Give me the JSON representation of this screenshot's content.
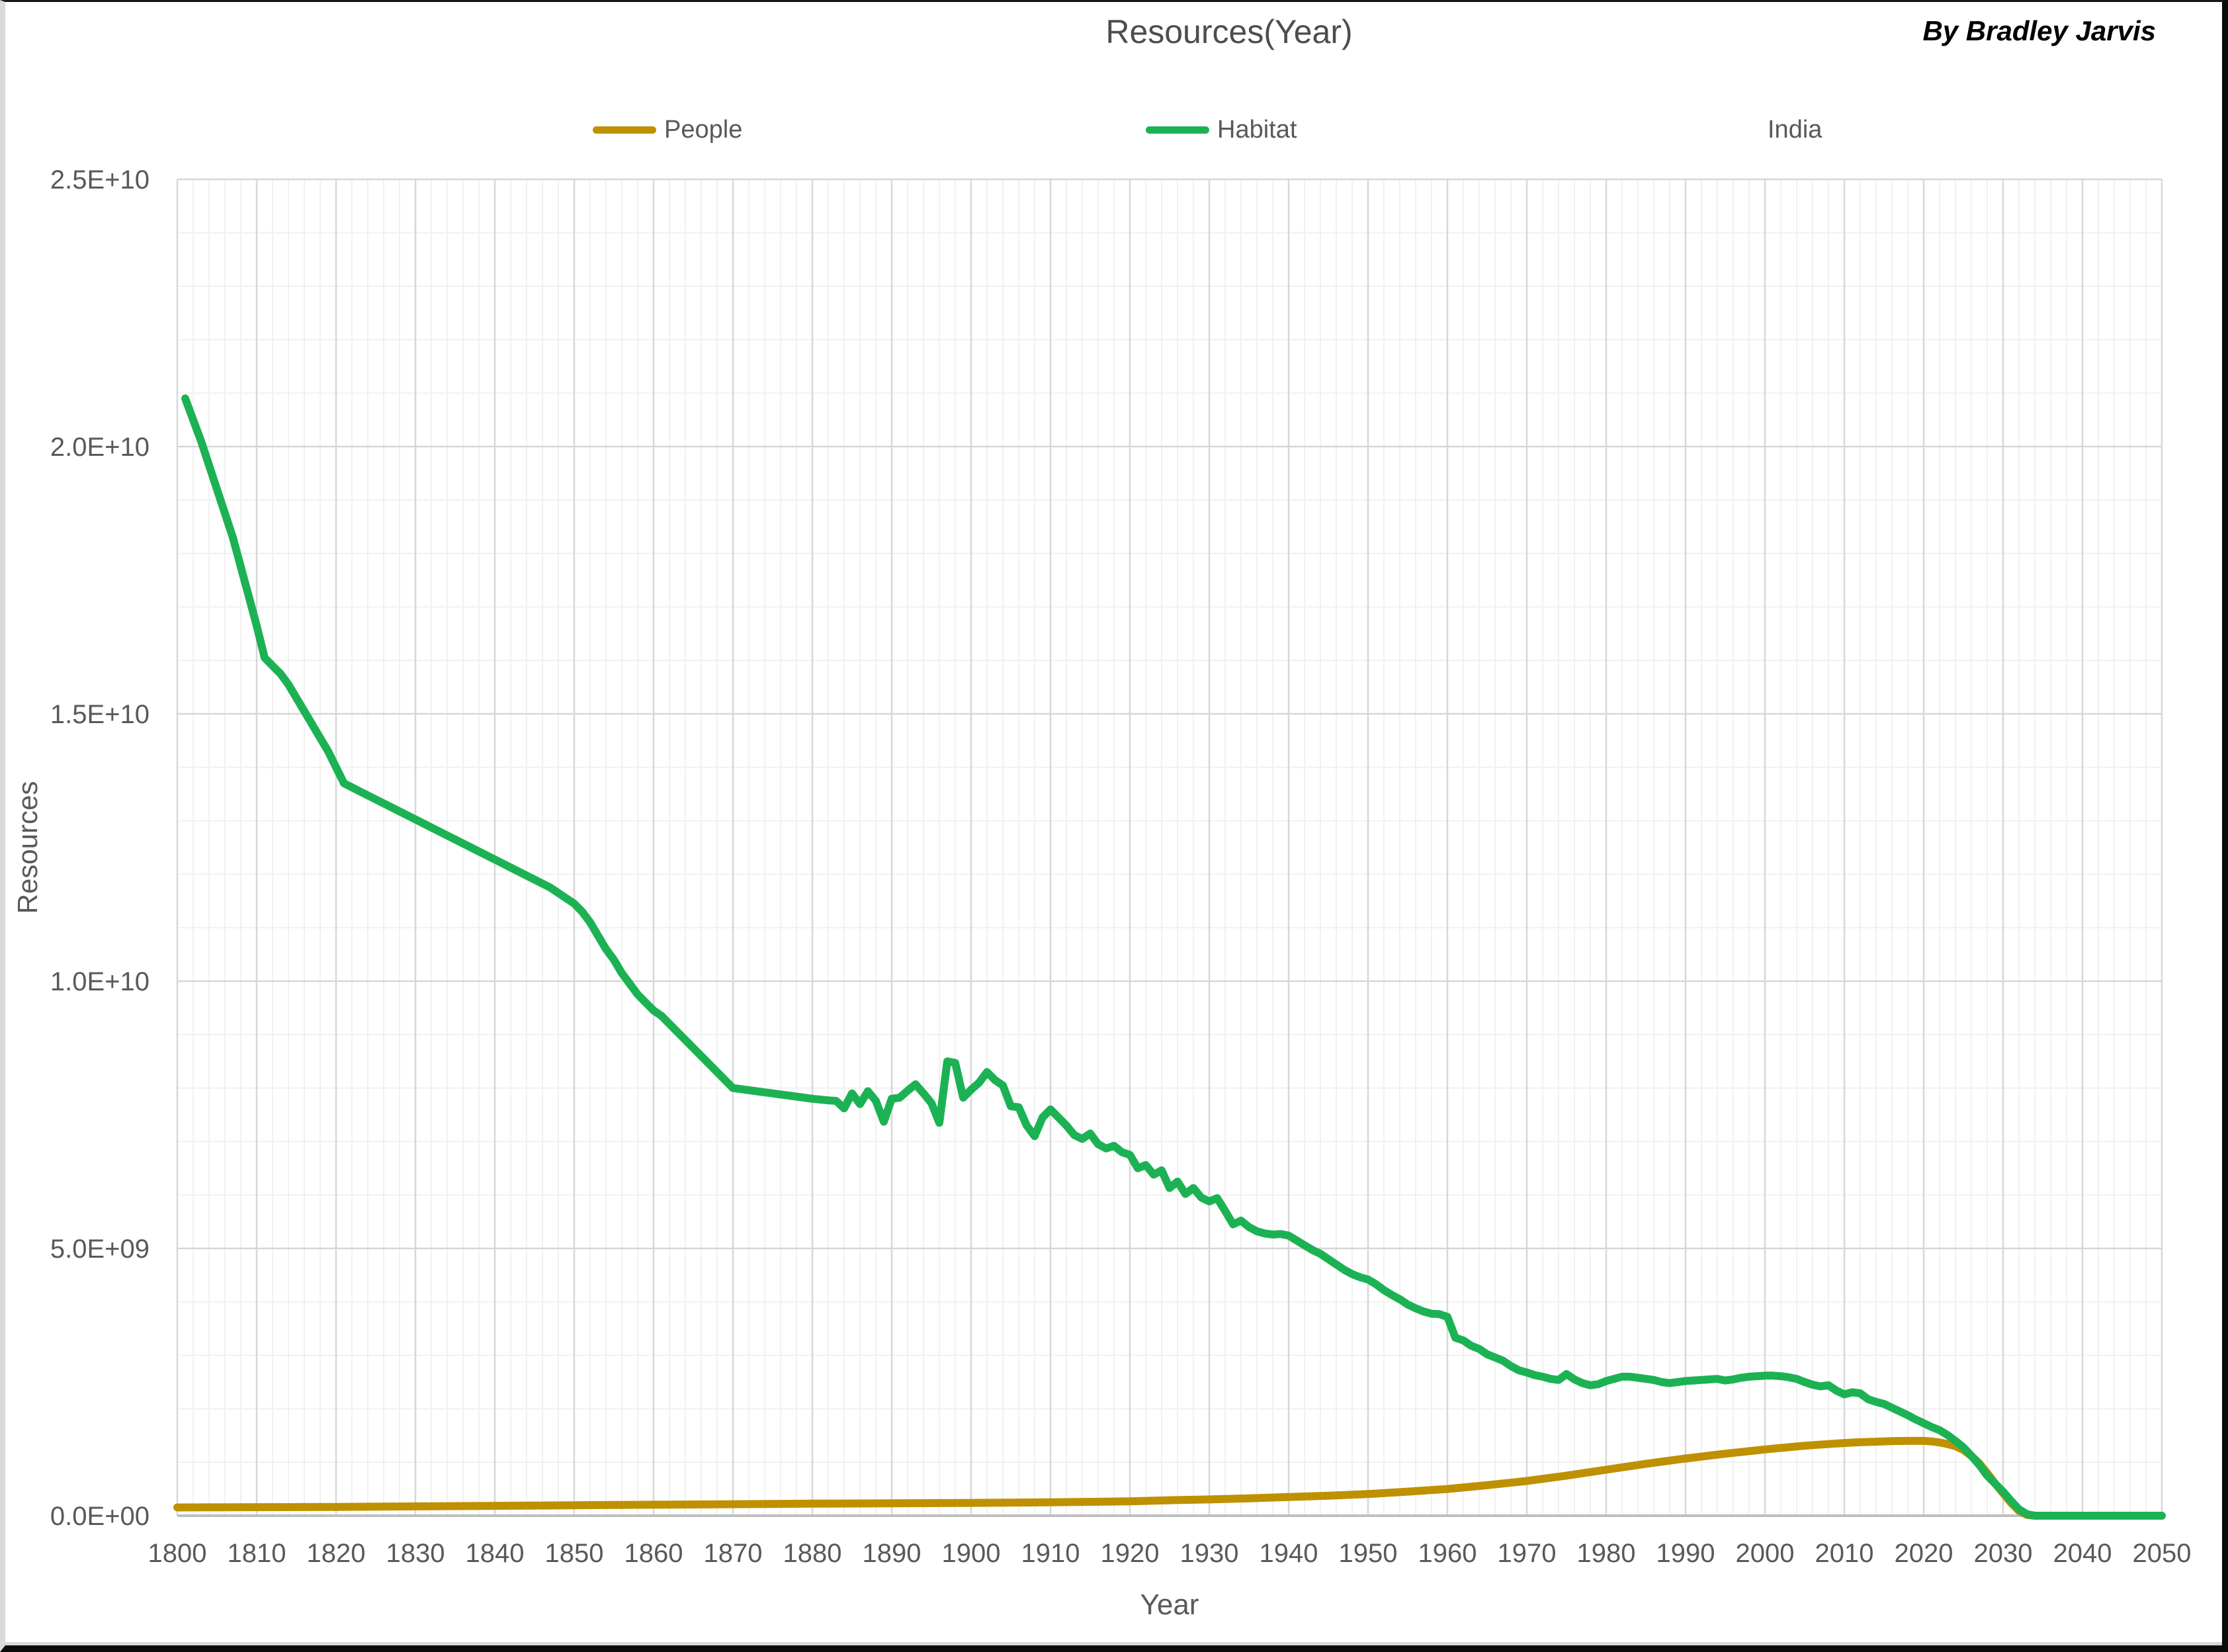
{
  "page": {
    "byline": "By Bradley Jarvis"
  },
  "chart_data": {
    "type": "line",
    "title": "Resources(Year)",
    "xlabel": "Year",
    "ylabel": "Resources",
    "x_range": [
      1800,
      2050
    ],
    "y_range_e9": [
      0,
      25
    ],
    "grid": {
      "x_minor_step_years": 2,
      "x_major_step_years": 10,
      "y_minor_step_e9": 1,
      "y_major_step_e9": 5,
      "grid_on": true
    },
    "legend_position": "top",
    "colors": {
      "people": "#BF9000",
      "habitat": "#1CB254",
      "major_grid": "#D7D7D7",
      "minor_grid": "#F1F1F1",
      "axis": "#BFBFBF",
      "text": "#595959"
    },
    "x_tick_labels": [
      1800,
      1810,
      1820,
      1830,
      1840,
      1850,
      1860,
      1870,
      1880,
      1890,
      1900,
      1910,
      1920,
      1930,
      1940,
      1950,
      1960,
      1970,
      1980,
      1990,
      2000,
      2010,
      2020,
      2030,
      2040,
      2050
    ],
    "y_ticks": [
      {
        "label": "0.0E+00",
        "value_e9": 0
      },
      {
        "label": "5.0E+09",
        "value_e9": 5
      },
      {
        "label": "1.0E+10",
        "value_e9": 10
      },
      {
        "label": "1.5E+10",
        "value_e9": 15
      },
      {
        "label": "2.0E+10",
        "value_e9": 20
      },
      {
        "label": "2.5E+10",
        "value_e9": 25
      }
    ],
    "legend": [
      {
        "label": "People",
        "color": "#BF9000",
        "has_swatch": true
      },
      {
        "label": "Habitat",
        "color": "#1CB254",
        "has_swatch": true
      },
      {
        "label": "India",
        "color": null,
        "has_swatch": false
      }
    ],
    "series": [
      {
        "name": "People",
        "color": "#BF9000",
        "unit": 1000000000.0,
        "points": [
          [
            1800,
            0.155
          ],
          [
            1810,
            0.16
          ],
          [
            1820,
            0.165
          ],
          [
            1830,
            0.175
          ],
          [
            1840,
            0.185
          ],
          [
            1850,
            0.195
          ],
          [
            1860,
            0.205
          ],
          [
            1870,
            0.215
          ],
          [
            1880,
            0.225
          ],
          [
            1890,
            0.232
          ],
          [
            1900,
            0.24
          ],
          [
            1910,
            0.25
          ],
          [
            1915,
            0.26
          ],
          [
            1920,
            0.27
          ],
          [
            1925,
            0.29
          ],
          [
            1930,
            0.305
          ],
          [
            1935,
            0.325
          ],
          [
            1940,
            0.35
          ],
          [
            1945,
            0.375
          ],
          [
            1950,
            0.405
          ],
          [
            1955,
            0.45
          ],
          [
            1960,
            0.5
          ],
          [
            1965,
            0.57
          ],
          [
            1970,
            0.65
          ],
          [
            1975,
            0.75
          ],
          [
            1980,
            0.86
          ],
          [
            1985,
            0.97
          ],
          [
            1990,
            1.07
          ],
          [
            1995,
            1.16
          ],
          [
            2000,
            1.24
          ],
          [
            2005,
            1.31
          ],
          [
            2008,
            1.34
          ],
          [
            2010,
            1.36
          ],
          [
            2012,
            1.375
          ],
          [
            2014,
            1.385
          ],
          [
            2016,
            1.395
          ],
          [
            2018,
            1.4
          ],
          [
            2020,
            1.4
          ],
          [
            2021,
            1.39
          ],
          [
            2022,
            1.37
          ],
          [
            2023,
            1.34
          ],
          [
            2024,
            1.3
          ],
          [
            2025,
            1.23
          ],
          [
            2026,
            1.12
          ],
          [
            2027,
            0.98
          ],
          [
            2028,
            0.8
          ],
          [
            2029,
            0.6
          ],
          [
            2030,
            0.42
          ],
          [
            2031,
            0.24
          ],
          [
            2032,
            0.09
          ],
          [
            2033,
            0.015
          ],
          [
            2034,
            0
          ],
          [
            2040,
            0
          ],
          [
            2045,
            0
          ],
          [
            2050,
            0
          ]
        ]
      },
      {
        "name": "Habitat",
        "color": "#1CB254",
        "unit": 1000000000.0,
        "points": [
          [
            1801,
            20.9
          ],
          [
            1802,
            20.5
          ],
          [
            1803,
            20.1
          ],
          [
            1804,
            19.65
          ],
          [
            1805,
            19.2
          ],
          [
            1806,
            18.75
          ],
          [
            1807,
            18.3
          ],
          [
            1808,
            17.75
          ],
          [
            1809,
            17.2
          ],
          [
            1810,
            16.65
          ],
          [
            1811,
            16.05
          ],
          [
            1812,
            15.9
          ],
          [
            1813,
            15.75
          ],
          [
            1814,
            15.55
          ],
          [
            1815,
            15.3
          ],
          [
            1816,
            15.05
          ],
          [
            1817,
            14.8
          ],
          [
            1818,
            14.55
          ],
          [
            1819,
            14.3
          ],
          [
            1820,
            14.0
          ],
          [
            1821,
            13.7
          ],
          [
            1823,
            13.55
          ],
          [
            1825,
            13.4
          ],
          [
            1827,
            13.25
          ],
          [
            1829,
            13.1
          ],
          [
            1831,
            12.95
          ],
          [
            1833,
            12.8
          ],
          [
            1835,
            12.65
          ],
          [
            1837,
            12.5
          ],
          [
            1839,
            12.35
          ],
          [
            1841,
            12.2
          ],
          [
            1843,
            12.05
          ],
          [
            1845,
            11.9
          ],
          [
            1847,
            11.75
          ],
          [
            1849,
            11.55
          ],
          [
            1850,
            11.45
          ],
          [
            1851,
            11.3
          ],
          [
            1852,
            11.1
          ],
          [
            1853,
            10.85
          ],
          [
            1854,
            10.6
          ],
          [
            1855,
            10.4
          ],
          [
            1856,
            10.15
          ],
          [
            1857,
            9.95
          ],
          [
            1858,
            9.75
          ],
          [
            1859,
            9.6
          ],
          [
            1860,
            9.45
          ],
          [
            1861,
            9.35
          ],
          [
            1862,
            9.2
          ],
          [
            1863,
            9.05
          ],
          [
            1864,
            8.9
          ],
          [
            1865,
            8.75
          ],
          [
            1866,
            8.6
          ],
          [
            1867,
            8.45
          ],
          [
            1868,
            8.3
          ],
          [
            1869,
            8.15
          ],
          [
            1870,
            8.0
          ],
          [
            1872,
            7.96
          ],
          [
            1874,
            7.92
          ],
          [
            1876,
            7.88
          ],
          [
            1878,
            7.84
          ],
          [
            1880,
            7.8
          ],
          [
            1882,
            7.77
          ],
          [
            1883,
            7.76
          ],
          [
            1884,
            7.62
          ],
          [
            1885,
            7.9
          ],
          [
            1886,
            7.7
          ],
          [
            1887,
            7.94
          ],
          [
            1888,
            7.76
          ],
          [
            1889,
            7.37
          ],
          [
            1890,
            7.8
          ],
          [
            1891,
            7.82
          ],
          [
            1892,
            7.95
          ],
          [
            1893,
            8.07
          ],
          [
            1894,
            7.9
          ],
          [
            1895,
            7.72
          ],
          [
            1896,
            7.35
          ],
          [
            1897,
            8.5
          ],
          [
            1898,
            8.47
          ],
          [
            1899,
            7.82
          ],
          [
            1900,
            7.97
          ],
          [
            1901,
            8.1
          ],
          [
            1902,
            8.3
          ],
          [
            1903,
            8.15
          ],
          [
            1904,
            8.05
          ],
          [
            1905,
            7.66
          ],
          [
            1906,
            7.64
          ],
          [
            1907,
            7.3
          ],
          [
            1908,
            7.1
          ],
          [
            1909,
            7.45
          ],
          [
            1910,
            7.6
          ],
          [
            1911,
            7.45
          ],
          [
            1912,
            7.3
          ],
          [
            1913,
            7.12
          ],
          [
            1914,
            7.05
          ],
          [
            1915,
            7.15
          ],
          [
            1916,
            6.95
          ],
          [
            1917,
            6.87
          ],
          [
            1918,
            6.92
          ],
          [
            1919,
            6.8
          ],
          [
            1920,
            6.75
          ],
          [
            1921,
            6.5
          ],
          [
            1922,
            6.56
          ],
          [
            1923,
            6.38
          ],
          [
            1924,
            6.46
          ],
          [
            1925,
            6.13
          ],
          [
            1926,
            6.25
          ],
          [
            1927,
            6.02
          ],
          [
            1928,
            6.13
          ],
          [
            1929,
            5.95
          ],
          [
            1930,
            5.88
          ],
          [
            1931,
            5.94
          ],
          [
            1932,
            5.7
          ],
          [
            1933,
            5.45
          ],
          [
            1934,
            5.52
          ],
          [
            1935,
            5.4
          ],
          [
            1936,
            5.32
          ],
          [
            1937,
            5.28
          ],
          [
            1938,
            5.26
          ],
          [
            1939,
            5.27
          ],
          [
            1940,
            5.24
          ],
          [
            1941,
            5.15
          ],
          [
            1942,
            5.06
          ],
          [
            1943,
            4.97
          ],
          [
            1944,
            4.9
          ],
          [
            1945,
            4.8
          ],
          [
            1946,
            4.7
          ],
          [
            1947,
            4.6
          ],
          [
            1948,
            4.52
          ],
          [
            1949,
            4.46
          ],
          [
            1950,
            4.42
          ],
          [
            1951,
            4.33
          ],
          [
            1952,
            4.22
          ],
          [
            1953,
            4.13
          ],
          [
            1954,
            4.05
          ],
          [
            1955,
            3.95
          ],
          [
            1956,
            3.88
          ],
          [
            1957,
            3.82
          ],
          [
            1958,
            3.78
          ],
          [
            1959,
            3.77
          ],
          [
            1960,
            3.72
          ],
          [
            1961,
            3.33
          ],
          [
            1962,
            3.28
          ],
          [
            1963,
            3.18
          ],
          [
            1964,
            3.12
          ],
          [
            1965,
            3.02
          ],
          [
            1966,
            2.96
          ],
          [
            1967,
            2.9
          ],
          [
            1968,
            2.8
          ],
          [
            1969,
            2.72
          ],
          [
            1970,
            2.68
          ],
          [
            1971,
            2.63
          ],
          [
            1972,
            2.6
          ],
          [
            1973,
            2.56
          ],
          [
            1974,
            2.54
          ],
          [
            1975,
            2.65
          ],
          [
            1976,
            2.55
          ],
          [
            1977,
            2.48
          ],
          [
            1978,
            2.44
          ],
          [
            1979,
            2.46
          ],
          [
            1980,
            2.52
          ],
          [
            1981,
            2.56
          ],
          [
            1982,
            2.6
          ],
          [
            1983,
            2.6
          ],
          [
            1984,
            2.58
          ],
          [
            1985,
            2.56
          ],
          [
            1986,
            2.54
          ],
          [
            1987,
            2.5
          ],
          [
            1988,
            2.48
          ],
          [
            1989,
            2.5
          ],
          [
            1990,
            2.52
          ],
          [
            1991,
            2.53
          ],
          [
            1992,
            2.54
          ],
          [
            1993,
            2.55
          ],
          [
            1994,
            2.56
          ],
          [
            1995,
            2.53
          ],
          [
            1996,
            2.55
          ],
          [
            1997,
            2.58
          ],
          [
            1998,
            2.6
          ],
          [
            1999,
            2.61
          ],
          [
            2000,
            2.62
          ],
          [
            2001,
            2.62
          ],
          [
            2002,
            2.61
          ],
          [
            2003,
            2.59
          ],
          [
            2004,
            2.56
          ],
          [
            2005,
            2.5
          ],
          [
            2006,
            2.45
          ],
          [
            2007,
            2.42
          ],
          [
            2008,
            2.44
          ],
          [
            2009,
            2.34
          ],
          [
            2010,
            2.27
          ],
          [
            2011,
            2.31
          ],
          [
            2012,
            2.29
          ],
          [
            2013,
            2.18
          ],
          [
            2014,
            2.13
          ],
          [
            2015,
            2.09
          ],
          [
            2016,
            2.02
          ],
          [
            2017,
            1.95
          ],
          [
            2018,
            1.88
          ],
          [
            2019,
            1.8
          ],
          [
            2020,
            1.73
          ],
          [
            2021,
            1.66
          ],
          [
            2022,
            1.6
          ],
          [
            2023,
            1.51
          ],
          [
            2024,
            1.4
          ],
          [
            2025,
            1.28
          ],
          [
            2026,
            1.12
          ],
          [
            2027,
            0.95
          ],
          [
            2028,
            0.75
          ],
          [
            2029,
            0.6
          ],
          [
            2030,
            0.45
          ],
          [
            2031,
            0.28
          ],
          [
            2032,
            0.12
          ],
          [
            2033,
            0.03
          ],
          [
            2034,
            0
          ],
          [
            2040,
            0
          ],
          [
            2045,
            0
          ],
          [
            2050,
            0
          ]
        ]
      }
    ],
    "plot_geometry": {
      "x0": 260,
      "x1": 3260,
      "y0": 2288,
      "y1": 268
    }
  }
}
